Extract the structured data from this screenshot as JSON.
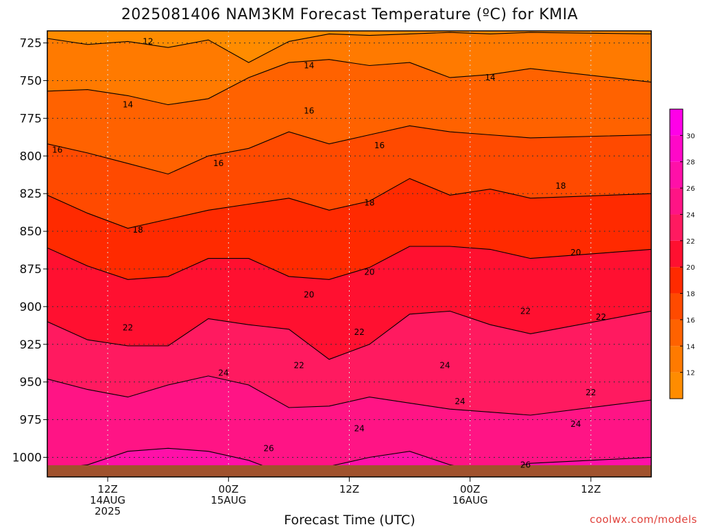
{
  "chart_data": {
    "type": "heatmap",
    "title": "2025081406 NAM3KM Forecast Temperature (ºC) for KMIA",
    "xlabel": "Forecast Time (UTC)",
    "ylabel": "",
    "credit": "coolwx.com/models",
    "y_axis": {
      "unit": "hPa",
      "reversed": true,
      "range": [
        1013,
        717
      ],
      "ticks": [
        725,
        750,
        775,
        800,
        825,
        850,
        875,
        900,
        925,
        950,
        975,
        1000
      ]
    },
    "x_axis": {
      "range_hours": [
        0,
        60
      ],
      "ticks": [
        {
          "hour": 6,
          "lines": [
            "12Z",
            "14AUG",
            "2025"
          ]
        },
        {
          "hour": 18,
          "lines": [
            "00Z",
            "15AUG"
          ]
        },
        {
          "hour": 30,
          "lines": [
            "12Z"
          ]
        },
        {
          "hour": 42,
          "lines": [
            "00Z",
            "16AUG"
          ]
        },
        {
          "hour": 54,
          "lines": [
            "12Z"
          ]
        }
      ]
    },
    "grid": true,
    "colorbar": {
      "ticks": [
        12,
        14,
        16,
        18,
        20,
        22,
        24,
        26,
        28,
        30
      ],
      "bands": [
        {
          "from": 10,
          "to": 12,
          "color": "#ff8c00"
        },
        {
          "from": 12,
          "to": 14,
          "color": "#ff7a00"
        },
        {
          "from": 14,
          "to": 16,
          "color": "#ff6200"
        },
        {
          "from": 16,
          "to": 18,
          "color": "#ff4a00"
        },
        {
          "from": 18,
          "to": 20,
          "color": "#ff2a00"
        },
        {
          "from": 20,
          "to": 22,
          "color": "#ff1030"
        },
        {
          "from": 22,
          "to": 24,
          "color": "#ff1a60"
        },
        {
          "from": 24,
          "to": 26,
          "color": "#ff1485"
        },
        {
          "from": 26,
          "to": 28,
          "color": "#ff10a8"
        },
        {
          "from": 28,
          "to": 30,
          "color": "#ff08c8"
        },
        {
          "from": 30,
          "to": 32,
          "color": "#ff00e8"
        }
      ]
    },
    "contours": [
      {
        "level": 12,
        "pressure": [
          722,
          726,
          724,
          728,
          723,
          738,
          724,
          719,
          720,
          719,
          718,
          719,
          718,
          719
        ]
      },
      {
        "level": 14,
        "pressure": [
          757,
          756,
          760,
          766,
          762,
          748,
          738,
          736,
          740,
          738,
          748,
          746,
          742,
          751
        ]
      },
      {
        "level": 16,
        "pressure": [
          792,
          798,
          805,
          812,
          800,
          795,
          784,
          792,
          786,
          780,
          784,
          786,
          788,
          786
        ]
      },
      {
        "level": 18,
        "pressure": [
          826,
          838,
          848,
          842,
          836,
          832,
          828,
          836,
          830,
          815,
          826,
          822,
          828,
          825
        ]
      },
      {
        "level": 20,
        "pressure": [
          861,
          873,
          882,
          880,
          868,
          868,
          880,
          882,
          874,
          860,
          860,
          862,
          868,
          862
        ]
      },
      {
        "level": 22,
        "pressure": [
          910,
          922,
          926,
          926,
          908,
          912,
          915,
          935,
          925,
          905,
          903,
          912,
          918,
          903
        ]
      },
      {
        "level": 24,
        "pressure": [
          948,
          955,
          960,
          952,
          946,
          952,
          967,
          966,
          960,
          964,
          968,
          970,
          972,
          962
        ]
      },
      {
        "level": 26,
        "pressure": [
          1008,
          1005,
          996,
          994,
          996,
          1002,
          1012,
          1006,
          1000,
          996,
          1005,
          1010,
          1004,
          1000
        ]
      }
    ],
    "contour_hours": [
      0,
      4,
      8,
      12,
      16,
      20,
      24,
      28,
      32,
      36,
      40,
      44,
      48,
      60
    ],
    "contour_labels": [
      {
        "level": 12,
        "hour": 10.0,
        "pressure": 724
      },
      {
        "level": 14,
        "hour": 26.0,
        "pressure": 740
      },
      {
        "level": 14,
        "hour": 44.0,
        "pressure": 748
      },
      {
        "level": 14,
        "hour": 8.0,
        "pressure": 766
      },
      {
        "level": 16,
        "hour": 26.0,
        "pressure": 770
      },
      {
        "level": 16,
        "hour": 1.0,
        "pressure": 796
      },
      {
        "level": 16,
        "hour": 17.0,
        "pressure": 805
      },
      {
        "level": 16,
        "hour": 33.0,
        "pressure": 793
      },
      {
        "level": 18,
        "hour": 51.0,
        "pressure": 820
      },
      {
        "level": 18,
        "hour": 32.0,
        "pressure": 831
      },
      {
        "level": 18,
        "hour": 9.0,
        "pressure": 849
      },
      {
        "level": 20,
        "hour": 52.5,
        "pressure": 864
      },
      {
        "level": 20,
        "hour": 32.0,
        "pressure": 877
      },
      {
        "level": 20,
        "hour": 26.0,
        "pressure": 892
      },
      {
        "level": 22,
        "hour": 47.5,
        "pressure": 903
      },
      {
        "level": 22,
        "hour": 55.0,
        "pressure": 907
      },
      {
        "level": 22,
        "hour": 8.0,
        "pressure": 914
      },
      {
        "level": 22,
        "hour": 31.0,
        "pressure": 917
      },
      {
        "level": 22,
        "hour": 25.0,
        "pressure": 939
      },
      {
        "level": 22,
        "hour": 54.0,
        "pressure": 957
      },
      {
        "level": 24,
        "hour": 17.5,
        "pressure": 944
      },
      {
        "level": 24,
        "hour": 39.5,
        "pressure": 939
      },
      {
        "level": 24,
        "hour": 41.0,
        "pressure": 963
      },
      {
        "level": 24,
        "hour": 31.0,
        "pressure": 981
      },
      {
        "level": 24,
        "hour": 52.5,
        "pressure": 978
      },
      {
        "level": 26,
        "hour": 22.0,
        "pressure": 994
      },
      {
        "level": 26,
        "hour": 47.5,
        "pressure": 1005
      }
    ]
  }
}
